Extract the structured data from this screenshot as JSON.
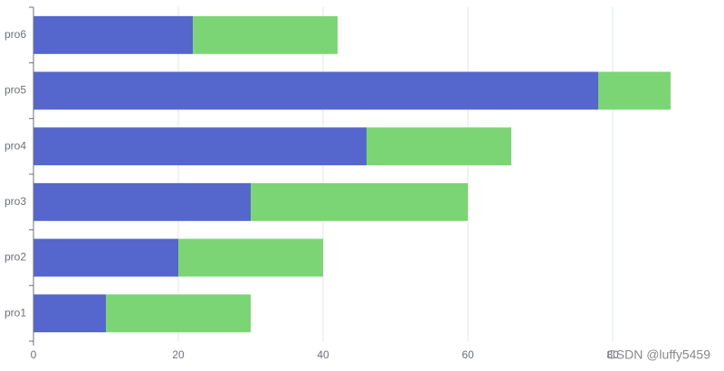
{
  "chart_data": {
    "type": "bar",
    "orientation": "horizontal",
    "stacked": true,
    "categories": [
      "pro1",
      "pro2",
      "pro3",
      "pro4",
      "pro5",
      "pro6"
    ],
    "series": [
      {
        "color": "#5567cc",
        "values": [
          10,
          20,
          30,
          46,
          78,
          22
        ]
      },
      {
        "color": "#7bd574",
        "values": [
          20,
          20,
          30,
          20,
          10,
          20
        ]
      }
    ],
    "xlim": [
      0,
      90
    ],
    "xticks": [
      0,
      20,
      40,
      60,
      80
    ],
    "grid": true,
    "watermark": "CSDN @luffy5459"
  }
}
